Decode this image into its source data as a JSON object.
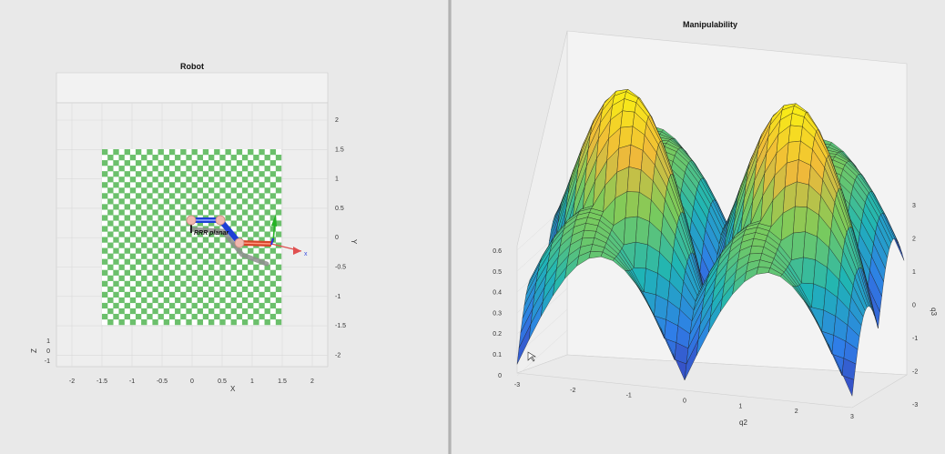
{
  "left_figure": {
    "title": "Robot",
    "xlabel": "X",
    "ylabel": "Y",
    "zlabel": "Z",
    "x_ticks": [
      "-2",
      "-1.5",
      "-1",
      "-0.5",
      "0",
      "0.5",
      "1",
      "1.5",
      "2"
    ],
    "y_ticks": [
      "2",
      "1.5",
      "1",
      "0.5",
      "0",
      "-0.5",
      "-1",
      "-1.5",
      "-2"
    ],
    "z_ticks": [
      "1",
      "0",
      "-1"
    ],
    "robot_label": "RRR planar",
    "floor_colors": {
      "green": "#6cc06c",
      "white": "#ffffff"
    },
    "link_color": "#1f3fd6",
    "end_link_color": "#e04a2a",
    "joint_color": "#f2b8b0"
  },
  "right_figure": {
    "title": "Manipulability",
    "xlabel": "q2",
    "ylabel": "q3",
    "x_ticks": [
      "-3",
      "-2",
      "-1",
      "0",
      "1",
      "2",
      "3"
    ],
    "y_ticks": [
      "3",
      "2",
      "1",
      "0",
      "-1",
      "-2",
      "-3"
    ],
    "z_ticks": [
      "0.6",
      "0.5",
      "0.4",
      "0.3",
      "0.2",
      "0.1",
      "0"
    ],
    "colormap": [
      "#3e26a8",
      "#2f7ee8",
      "#1fb5b5",
      "#7ccb5a",
      "#f0b93a",
      "#f9f113"
    ]
  }
}
